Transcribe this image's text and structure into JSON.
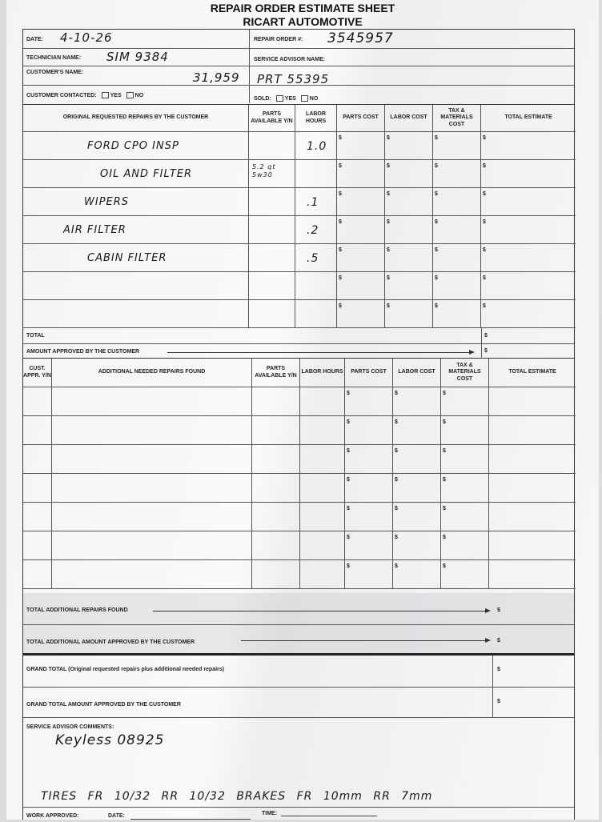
{
  "header": {
    "title": "REPAIR ORDER ESTIMATE SHEET",
    "company": "RICART AUTOMOTIVE"
  },
  "fields": {
    "date_label": "DATE:",
    "date_value": "4-10-26",
    "repair_order_label": "REPAIR ORDER #:",
    "repair_order_value": "3545957",
    "technician_label": "TECHNICIAN NAME:",
    "technician_value": "SIM 9384",
    "service_advisor_label": "SERVICE ADVISOR NAME:",
    "customer_label": "CUSTOMER'S NAME:",
    "customer_value": "31,959",
    "customer_value2": "PRT 55395",
    "contacted_label": "CUSTOMER CONTACTED:",
    "yes": "YES",
    "no": "NO",
    "sold_label": "SOLD:"
  },
  "table1": {
    "headers": [
      "ORIGINAL REQUESTED REPAIRS BY THE CUSTOMER",
      "PARTS AVAILABLE Y/N",
      "LABOR HOURS",
      "PARTS COST",
      "LABOR COST",
      "TAX & MATERIALS COST",
      "TOTAL ESTIMATE"
    ],
    "rows": [
      {
        "repair": "FORD CPO INSP",
        "parts": "",
        "hours": "1.0"
      },
      {
        "repair": "OIL AND FILTER",
        "parts": "5.2 qt 5w30",
        "hours": ""
      },
      {
        "repair": "WIPERS",
        "parts": "",
        "hours": ".1"
      },
      {
        "repair": "AIR FILTER",
        "parts": "",
        "hours": ".2"
      },
      {
        "repair": "CABIN FILTER",
        "parts": "",
        "hours": ".5"
      },
      {
        "repair": "",
        "parts": "",
        "hours": ""
      },
      {
        "repair": "",
        "parts": "",
        "hours": ""
      }
    ],
    "currency": "$",
    "total_label": "TOTAL",
    "approved_label": "AMOUNT APPROVED BY THE CUSTOMER"
  },
  "table2": {
    "headers": [
      "CUST. APPR. Y/N",
      "ADDITIONAL NEEDED REPAIRS FOUND",
      "PARTS AVAILABLE Y/N",
      "LABOR HOURS",
      "PARTS COST",
      "LABOR COST",
      "TAX & MATERIALS COST",
      "TOTAL ESTIMATE"
    ],
    "row_count": 7,
    "total_found_label": "TOTAL ADDITIONAL REPAIRS FOUND",
    "total_approved_label": "TOTAL ADDITIONAL AMOUNT APPROVED BY THE CUSTOMER",
    "grand_total_label": "GRAND TOTAL (Original requested repairs plus additional needed repairs)",
    "grand_total_approved_label": "GRAND TOTAL AMOUNT APPROVED BY THE CUSTOMER"
  },
  "comments": {
    "label": "SERVICE ADVISOR COMMENTS:",
    "line1": "Keyless 08925",
    "line2": "TIRES FR 10/32 RR 10/32   BRAKES FR 10mm  RR 7mm"
  },
  "footer": {
    "work_approved": "WORK APPROVED:",
    "date": "DATE:",
    "time": "TIME:"
  }
}
